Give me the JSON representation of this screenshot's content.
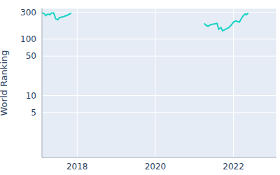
{
  "chart_data": {
    "type": "line",
    "y_label": "World Ranking",
    "x": [
      2017.1,
      2017.15,
      2017.2,
      2017.25,
      2017.3,
      2017.35,
      2017.4,
      2017.45,
      2017.5,
      2017.55,
      2017.65,
      2017.75,
      2017.85,
      2019.5,
      2021.25,
      2021.3,
      2021.35,
      2021.42,
      2021.5,
      2021.58,
      2021.62,
      2021.68,
      2021.72,
      2021.8,
      2021.88,
      2021.95,
      2022.0,
      2022.05,
      2022.1,
      2022.15,
      2022.2,
      2022.25,
      2022.3,
      2022.33,
      2022.38
    ],
    "values": [
      290,
      285,
      260,
      280,
      270,
      290,
      290,
      230,
      220,
      240,
      250,
      265,
      290,
      null,
      190,
      175,
      170,
      180,
      185,
      190,
      150,
      160,
      140,
      150,
      160,
      180,
      200,
      210,
      205,
      200,
      230,
      260,
      280,
      270,
      290
    ],
    "color": "#19d3c5",
    "log": "y",
    "grid": true,
    "xlim": [
      2017.1,
      2023.1
    ],
    "xticks": [
      2018,
      2020,
      2022
    ],
    "ylim": [
      0.8,
      350
    ],
    "yticks": [
      5,
      10,
      50,
      100,
      300
    ]
  }
}
